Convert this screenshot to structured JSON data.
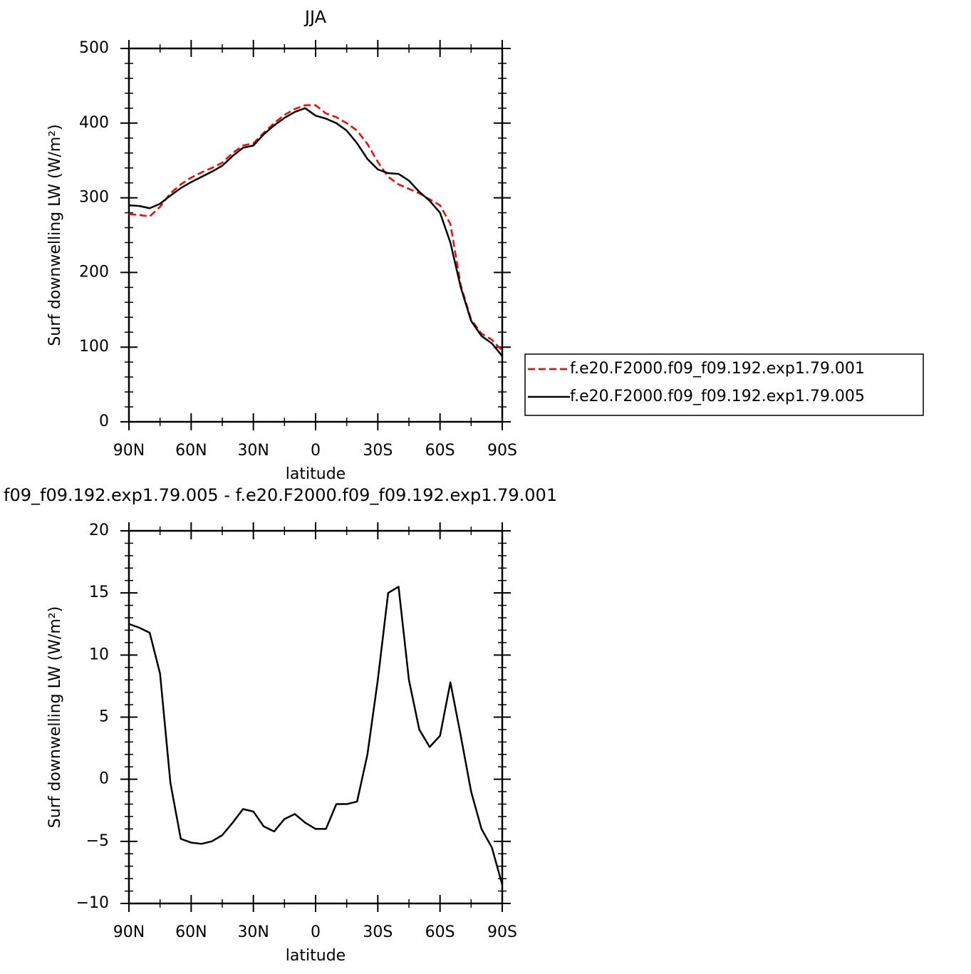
{
  "chart_data": [
    {
      "type": "line",
      "title": "JJA",
      "xlabel": "latitude",
      "ylabel": "Surf downwelling LW (W/m²)",
      "x": [
        90,
        85,
        80,
        75,
        70,
        65,
        60,
        55,
        50,
        45,
        40,
        35,
        30,
        25,
        20,
        15,
        10,
        5,
        0,
        -5,
        -10,
        -15,
        -20,
        -25,
        -30,
        -35,
        -40,
        -45,
        -50,
        -55,
        -60,
        -65,
        -70,
        -75,
        -80,
        -85,
        -90
      ],
      "xlim": [
        90,
        -90
      ],
      "xticks": [
        {
          "value": 90,
          "label": "90N"
        },
        {
          "value": 60,
          "label": "60N"
        },
        {
          "value": 30,
          "label": "30N"
        },
        0,
        {
          "value": -30,
          "label": "30S"
        },
        {
          "value": -60,
          "label": "60S"
        },
        {
          "value": -90,
          "label": "90S"
        }
      ],
      "xminorticks": [
        75,
        45,
        15,
        -15,
        -45,
        -75
      ],
      "ylim": [
        0,
        500
      ],
      "yticks": [
        0,
        100,
        200,
        300,
        400,
        500
      ],
      "yminorticks": [
        20,
        40,
        60,
        80,
        120,
        140,
        160,
        180,
        220,
        240,
        260,
        280,
        320,
        340,
        360,
        380,
        420,
        440,
        460,
        480
      ],
      "legend": "right",
      "series": [
        {
          "name": "f.e20.F2000.f09_f09.192.exp1.79.001",
          "color": "#ff0000",
          "dash": true,
          "values": [
            278,
            277,
            275,
            288,
            306,
            318,
            327,
            334,
            340,
            347,
            360,
            370,
            373,
            387,
            400,
            411,
            419,
            424,
            424,
            413,
            408,
            400,
            390,
            372,
            348,
            328,
            318,
            312,
            306,
            298,
            290,
            265,
            183,
            137,
            118,
            110,
            95
          ]
        },
        {
          "name": "f.e20.F2000.f09_f09.192.exp1.79.005",
          "color": "#000000",
          "dash": false,
          "values": [
            290,
            289,
            286,
            292,
            303,
            313,
            321,
            328,
            335,
            343,
            356,
            367,
            370,
            385,
            397,
            407,
            415,
            420,
            410,
            406,
            400,
            390,
            373,
            352,
            338,
            333,
            332,
            323,
            308,
            296,
            280,
            240,
            180,
            135,
            115,
            105,
            88
          ]
        }
      ]
    },
    {
      "type": "line",
      "title": "f09_f09.192.exp1.79.005 - f.e20.F2000.f09_f09.192.exp1.79.001",
      "xlabel": "latitude",
      "ylabel": "Surf downwelling LW (W/m²)",
      "x": [
        90,
        85,
        80,
        75,
        70,
        65,
        60,
        55,
        50,
        45,
        40,
        35,
        30,
        25,
        20,
        15,
        10,
        5,
        0,
        -5,
        -10,
        -15,
        -20,
        -25,
        -30,
        -35,
        -40,
        -45,
        -50,
        -55,
        -60,
        -65,
        -70,
        -75,
        -80,
        -85,
        -90
      ],
      "xlim": [
        90,
        -90
      ],
      "xticks": [
        {
          "value": 90,
          "label": "90N"
        },
        {
          "value": 60,
          "label": "60N"
        },
        {
          "value": 30,
          "label": "30N"
        },
        0,
        {
          "value": -30,
          "label": "30S"
        },
        {
          "value": -60,
          "label": "60S"
        },
        {
          "value": -90,
          "label": "90S"
        }
      ],
      "xminorticks": [
        75,
        45,
        15,
        -15,
        -45,
        -75
      ],
      "ylim": [
        -10,
        20
      ],
      "yticks": [
        {
          "value": -10,
          "label": "−10"
        },
        {
          "value": -5,
          "label": "−5"
        },
        0,
        5,
        10,
        15,
        20
      ],
      "yminorticks": [
        -9,
        -8,
        -7,
        -6,
        -4,
        -3,
        -2,
        -1,
        1,
        2,
        3,
        4,
        6,
        7,
        8,
        9,
        11,
        12,
        13,
        14,
        16,
        17,
        18,
        19
      ],
      "series": [
        {
          "color": "#000000",
          "dash": false,
          "values": [
            12.5,
            12.2,
            11.8,
            8.5,
            -0.3,
            -4.8,
            -5.1,
            -5.2,
            -5.0,
            -4.5,
            -3.5,
            -2.4,
            -2.6,
            -3.8,
            -4.2,
            -3.2,
            -2.8,
            -3.5,
            -4.0,
            -4.0,
            -2.0,
            -2.0,
            -1.8,
            2.0,
            8.0,
            15.0,
            15.5,
            8.0,
            4.0,
            2.6,
            3.5,
            7.8,
            3.5,
            -1.0,
            -4.0,
            -5.5,
            -8.5
          ]
        }
      ]
    }
  ]
}
